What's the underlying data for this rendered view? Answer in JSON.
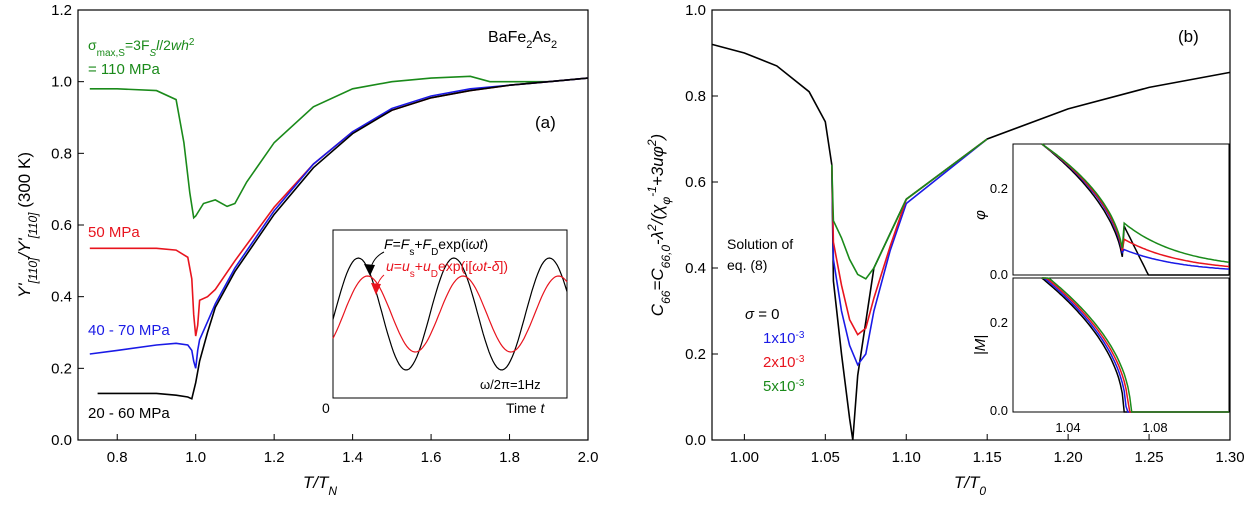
{
  "chart_data": [
    {
      "panel": "(a)",
      "type": "line",
      "sample": "BaFe2As2",
      "xlabel": "T/T_N",
      "ylabel": "Y'_[110]/Y'_[110] (300 K)",
      "xlim": [
        0.7,
        2.0
      ],
      "ylim": [
        0.0,
        1.2
      ],
      "xticks": [
        "0.8",
        "1.0",
        "1.2",
        "1.4",
        "1.6",
        "1.8",
        "2.0"
      ],
      "yticks": [
        "0.0",
        "0.2",
        "0.4",
        "0.6",
        "0.8",
        "1.0",
        "1.2"
      ],
      "annotations": {
        "green_formula": "σmax,S=3FSl/2wh2",
        "green_value": "= 110 MPa",
        "red": "50 MPa",
        "blue": "40 - 70 MPa",
        "black": "20 - 60 MPa"
      },
      "colors": {
        "green": "#1a8a1a",
        "red": "#e8141e",
        "blue": "#1a1ae6",
        "black": "#000000"
      },
      "series": [
        {
          "label_ref": "green",
          "x": [
            0.73,
            0.8,
            0.9,
            0.95,
            0.97,
            0.985,
            0.995,
            1.0,
            1.02,
            1.05,
            1.08,
            1.1,
            1.13,
            1.2,
            1.3,
            1.4,
            1.5,
            1.6,
            1.7,
            1.75,
            1.8,
            1.9,
            2.0
          ],
          "y": [
            0.98,
            0.98,
            0.975,
            0.95,
            0.83,
            0.69,
            0.62,
            0.625,
            0.66,
            0.67,
            0.652,
            0.66,
            0.72,
            0.83,
            0.93,
            0.98,
            1.0,
            1.01,
            1.015,
            1.0,
            1.0,
            1.0,
            1.01
          ]
        },
        {
          "label_ref": "red",
          "x": [
            0.73,
            0.8,
            0.9,
            0.95,
            0.98,
            0.99,
            0.995,
            1.0,
            1.005,
            1.01,
            1.03,
            1.05,
            1.1,
            1.2,
            1.3,
            1.4,
            1.5,
            1.6,
            1.7,
            1.8,
            1.9,
            2.0
          ],
          "y": [
            0.535,
            0.535,
            0.535,
            0.53,
            0.51,
            0.45,
            0.35,
            0.29,
            0.32,
            0.39,
            0.4,
            0.42,
            0.5,
            0.65,
            0.77,
            0.86,
            0.92,
            0.955,
            0.975,
            0.99,
            1.0,
            1.01
          ]
        },
        {
          "label_ref": "blue",
          "x": [
            0.73,
            0.8,
            0.9,
            0.95,
            0.98,
            0.99,
            0.995,
            1.0,
            1.005,
            1.01,
            1.03,
            1.05,
            1.1,
            1.2,
            1.3,
            1.4,
            1.5,
            1.6,
            1.7,
            1.8,
            1.9,
            2.0
          ],
          "y": [
            0.24,
            0.25,
            0.265,
            0.27,
            0.265,
            0.25,
            0.22,
            0.2,
            0.25,
            0.28,
            0.33,
            0.38,
            0.48,
            0.64,
            0.77,
            0.86,
            0.925,
            0.96,
            0.98,
            0.99,
            1.0,
            1.01
          ]
        },
        {
          "label_ref": "black",
          "x": [
            0.75,
            0.8,
            0.9,
            0.95,
            0.98,
            0.99,
            1.0,
            1.01,
            1.03,
            1.05,
            1.1,
            1.2,
            1.3,
            1.4,
            1.5,
            1.6,
            1.7,
            1.8,
            1.9,
            2.0
          ],
          "y": [
            0.13,
            0.13,
            0.13,
            0.125,
            0.12,
            0.115,
            0.16,
            0.22,
            0.3,
            0.37,
            0.47,
            0.63,
            0.76,
            0.855,
            0.92,
            0.955,
            0.975,
            0.99,
            1.0,
            1.01
          ]
        }
      ],
      "inset": {
        "xlabel": "Time t",
        "origin_label": "0",
        "force_label": "F=Fs+FDexp(iωt)",
        "disp_label": "u=us+uDexp(i[ωt-δ])",
        "freq_label": "ω/2π=1Hz"
      }
    },
    {
      "panel": "(b)",
      "type": "line",
      "xlabel": "T/T0",
      "ylabel": "C66=C66,0-λ2/(χφ-1+3uφ2)",
      "xlim": [
        0.98,
        1.3
      ],
      "ylim": [
        0.0,
        1.0
      ],
      "xticks": [
        "1.00",
        "1.05",
        "1.10",
        "1.15",
        "1.20",
        "1.25",
        "1.30"
      ],
      "yticks": [
        "0.0",
        "0.2",
        "0.4",
        "0.6",
        "0.8",
        "1.0"
      ],
      "legend_title": "Solution of eq. (8)",
      "legend": [
        "σ = 0",
        "1x10-3",
        "2x10-3",
        "5x10-3"
      ],
      "colors": {
        "black": "#000000",
        "blue": "#1a1ae6",
        "red": "#e8141e",
        "green": "#1a8a1a"
      },
      "series": [
        {
          "label_ref": "black",
          "x": [
            0.98,
            1.0,
            1.02,
            1.04,
            1.05,
            1.054,
            1.055,
            1.06,
            1.065,
            1.067,
            1.07,
            1.08,
            1.1,
            1.15,
            1.2,
            1.25,
            1.3
          ],
          "y": [
            0.92,
            0.9,
            0.87,
            0.81,
            0.74,
            0.64,
            0.37,
            0.2,
            0.05,
            0.0,
            0.15,
            0.4,
            0.56,
            0.7,
            0.77,
            0.82,
            0.855
          ]
        },
        {
          "label_ref": "blue",
          "x": [
            1.054,
            1.055,
            1.06,
            1.065,
            1.07,
            1.075,
            1.08,
            1.09,
            1.1,
            1.15
          ],
          "y": [
            0.64,
            0.42,
            0.3,
            0.22,
            0.175,
            0.2,
            0.3,
            0.44,
            0.55,
            0.7
          ]
        },
        {
          "label_ref": "red",
          "x": [
            1.054,
            1.055,
            1.06,
            1.065,
            1.07,
            1.075,
            1.08,
            1.09,
            1.1,
            1.15
          ],
          "y": [
            0.64,
            0.46,
            0.36,
            0.28,
            0.245,
            0.26,
            0.33,
            0.45,
            0.56,
            0.7
          ]
        },
        {
          "label_ref": "green",
          "x": [
            1.054,
            1.055,
            1.06,
            1.065,
            1.07,
            1.075,
            1.08,
            1.09,
            1.1,
            1.15
          ],
          "y": [
            0.64,
            0.51,
            0.47,
            0.42,
            0.385,
            0.375,
            0.4,
            0.48,
            0.56,
            0.7
          ]
        }
      ],
      "inset_top": {
        "ylabel": "φ",
        "yticks": [
          "0.0",
          "0.2"
        ]
      },
      "inset_bottom": {
        "ylabel": "|M|",
        "yticks": [
          "0.0",
          "0.2"
        ],
        "xticks": [
          "1.04",
          "1.08"
        ]
      }
    }
  ]
}
